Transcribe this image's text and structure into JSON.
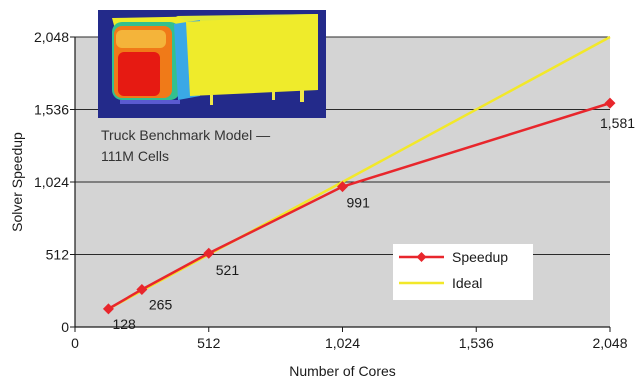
{
  "chart_data": {
    "type": "line",
    "xlabel": "Number of Cores",
    "ylabel": "Solver Speedup",
    "xlim": [
      0,
      2048
    ],
    "ylim": [
      0,
      2048
    ],
    "xticks": [
      0,
      512,
      1024,
      1536,
      2048
    ],
    "yticks": [
      0,
      512,
      1024,
      1536,
      2048
    ],
    "xtick_labels": [
      "0",
      "512",
      "1,024",
      "1,536",
      "2,048"
    ],
    "ytick_labels": [
      "0",
      "512",
      "1,024",
      "1,536",
      "2,048"
    ],
    "grid": "horizontal",
    "legend_position": "lower-right",
    "series": [
      {
        "name": "Speedup",
        "color": "#e8262c",
        "marker": "diamond",
        "x": [
          128,
          256,
          512,
          1024,
          2048
        ],
        "y": [
          128,
          265,
          521,
          991,
          1581
        ],
        "labels": [
          "128",
          "265",
          "521",
          "991",
          "1,581"
        ]
      },
      {
        "name": "Ideal",
        "color": "#f2e829",
        "x": [
          128,
          2048
        ],
        "y": [
          128,
          2048
        ]
      }
    ],
    "annotation": [
      "Truck Benchmark Model —",
      "111M Cells"
    ],
    "plot_background": "#d4d4d4",
    "grid_color": "#2a2a2a"
  }
}
